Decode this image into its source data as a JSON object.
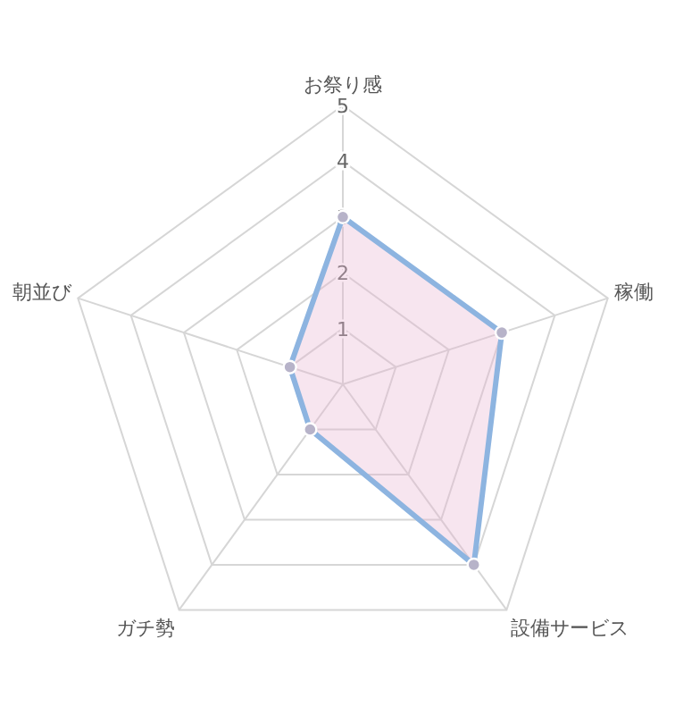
{
  "chart_data": {
    "type": "radar",
    "categories": [
      "お祭り感",
      "稼働",
      "設備サービス",
      "ガチ勢",
      "朝並び"
    ],
    "series": [
      {
        "color": "#8db4e0",
        "values": [
          3,
          3,
          4,
          1,
          1
        ]
      }
    ],
    "ylim": [
      0,
      5
    ],
    "yticks": [
      1,
      2,
      3,
      4,
      5
    ],
    "grid": true,
    "marker": "circle"
  }
}
